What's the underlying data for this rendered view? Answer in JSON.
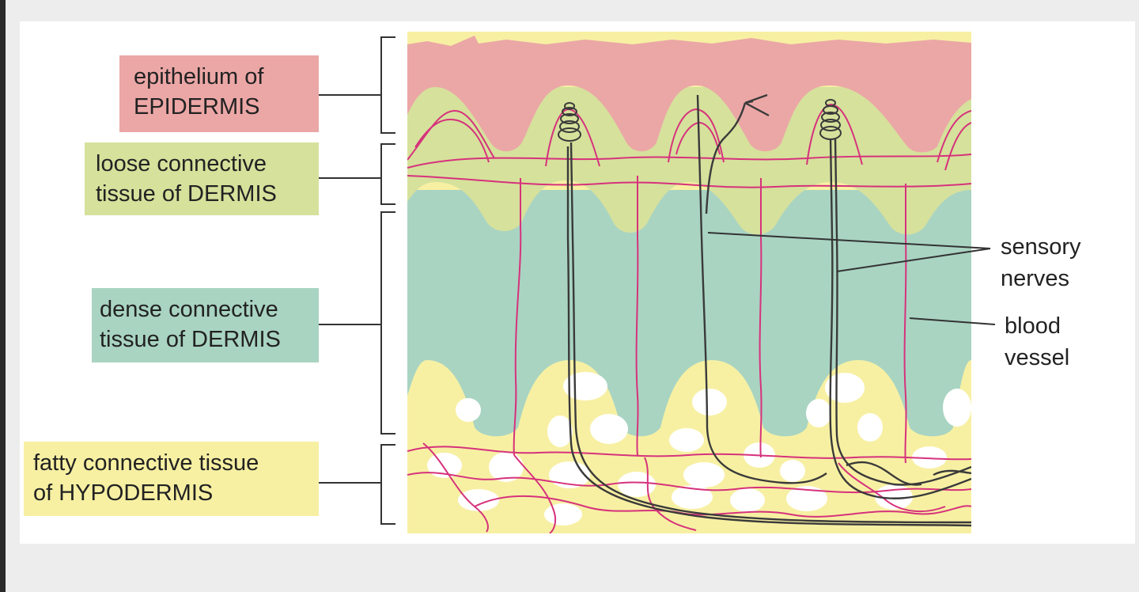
{
  "colors": {
    "epidermis": "#eba7a6",
    "loose_dermis": "#d6e19c",
    "dense_dermis": "#a9d4c2",
    "hypodermis": "#f7f0a3",
    "blood_vessel": "#d6327c",
    "nerve": "#3a3a3a",
    "bracket": "#333333"
  },
  "layers": [
    {
      "key": "epidermis",
      "lines": [
        "epithelium of",
        "EPIDERMIS"
      ]
    },
    {
      "key": "loose_dermis",
      "lines": [
        "loose connective",
        "tissue of DERMIS"
      ]
    },
    {
      "key": "dense_dermis",
      "lines": [
        "dense connective",
        "tissue of DERMIS"
      ]
    },
    {
      "key": "hypodermis",
      "lines": [
        "fatty connective tissue",
        "of HYPODERMIS"
      ]
    }
  ],
  "callouts": {
    "sensory_nerves": [
      "sensory",
      "nerves"
    ],
    "blood_vessel": [
      "blood",
      "vessel"
    ]
  },
  "icons": {
    "nerve_ending": "coiled-nerve-ending-icon",
    "free_nerve_ending": "branched-nerve-ending-icon"
  }
}
